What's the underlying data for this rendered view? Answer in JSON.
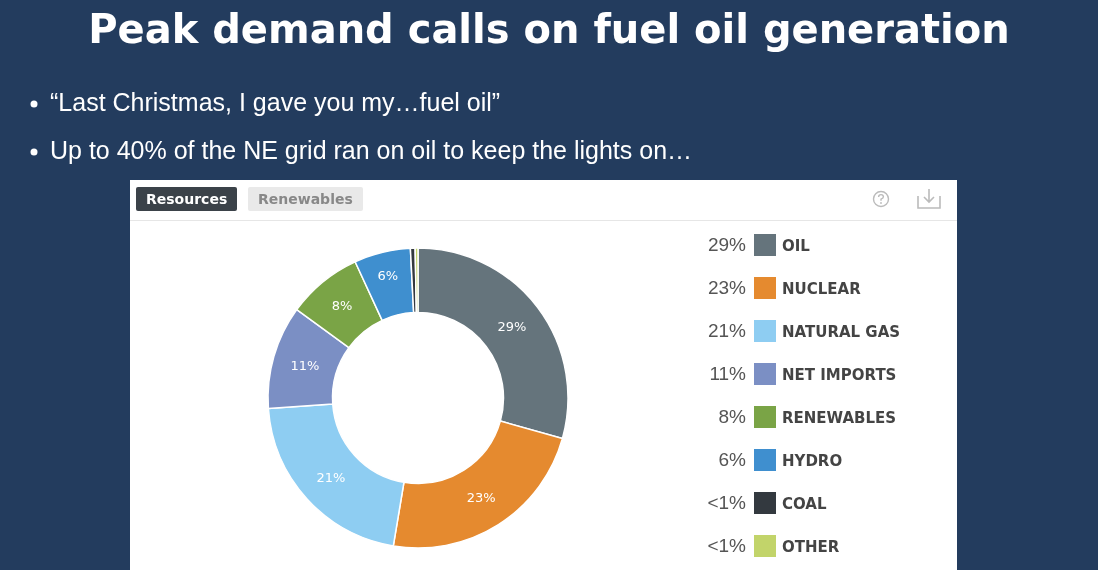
{
  "chart_data": {
    "type": "donut",
    "title": "Peak demand calls on fuel oil generation",
    "annotations": [
      "“Last Christmas, I gave you my…fuel oil”",
      "Up to 40% of the NE grid ran on oil to keep the lights on…",
      "Resources",
      "Renewables"
    ],
    "categories": [
      "OIL",
      "NUCLEAR",
      "NATURAL GAS",
      "NET IMPORTS",
      "RENEWABLES",
      "HYDRO",
      "COAL",
      "OTHER"
    ],
    "values": [
      29,
      23,
      21,
      11,
      8,
      6,
      0.5,
      0.3
    ],
    "value_labels": [
      "29%",
      "23%",
      "21%",
      "11%",
      "8%",
      "6%",
      "<1%",
      "<1%"
    ],
    "colors": [
      "#65747c",
      "#e58a2f",
      "#8ecdf2",
      "#7b8fc4",
      "#7aa446",
      "#3f8fcf",
      "#33393f",
      "#c2d46a"
    ],
    "legend": "right"
  }
}
